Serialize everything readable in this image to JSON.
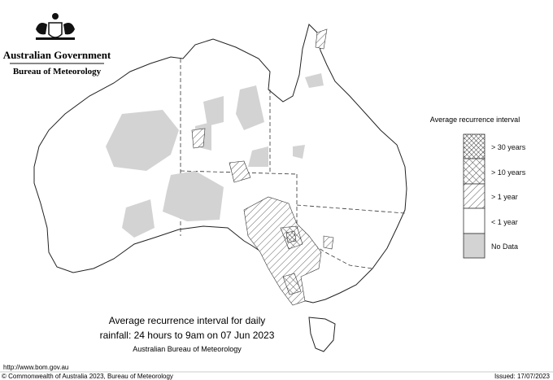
{
  "header": {
    "title": "Australian Government",
    "subtitle": "Bureau of Meteorology"
  },
  "legend": {
    "title": "Average recurrence interval",
    "items": [
      {
        "label": "> 30 years"
      },
      {
        "label": "> 10 years"
      },
      {
        "label": "> 1 year"
      },
      {
        "label": "< 1 year"
      },
      {
        "label": "No Data"
      }
    ]
  },
  "caption": {
    "line1": "Average recurrence interval for daily",
    "line2": "rainfall: 24 hours to 9am on 07 Jun 2023",
    "line3": "Australian Bureau of Meteorology"
  },
  "footer": {
    "url": "http://www.bom.gov.au",
    "copyright": "© Commonwealth of Australia 2023, Bureau of Meteorology",
    "issued": "Issued: 17/07/2023"
  }
}
